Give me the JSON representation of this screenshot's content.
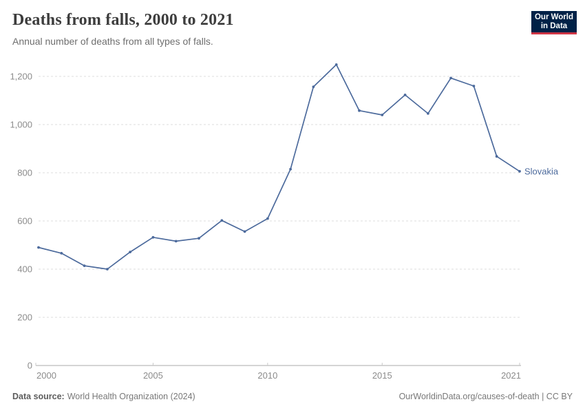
{
  "header": {
    "title": "Deaths from falls, 2000 to 2021",
    "subtitle": "Annual number of deaths from all types of falls."
  },
  "logo": {
    "line1": "Our World",
    "line2": "in Data",
    "bg_color": "#002147",
    "accent_color": "#cf3545"
  },
  "chart_data": {
    "type": "line",
    "title": "Deaths from falls, 2000 to 2021",
    "xlabel": "",
    "ylabel": "",
    "x_range": [
      2000,
      2021
    ],
    "ylim": [
      0,
      1200
    ],
    "grid": "horizontal-dashed",
    "legend_position": "end-of-line-label",
    "x": [
      2000,
      2001,
      2002,
      2003,
      2004,
      2005,
      2006,
      2007,
      2008,
      2009,
      2010,
      2011,
      2012,
      2013,
      2014,
      2015,
      2016,
      2017,
      2018,
      2019,
      2020,
      2021
    ],
    "series": [
      {
        "name": "Slovakia",
        "color": "#4c6a9c",
        "values": [
          490,
          466,
          414,
          400,
          471,
          532,
          516,
          528,
          602,
          556,
          610,
          815,
          1157,
          1249,
          1058,
          1040,
          1123,
          1046,
          1193,
          1160,
          868,
          806
        ]
      }
    ],
    "yticks": [
      {
        "value": 0,
        "label": "0"
      },
      {
        "value": 200,
        "label": "200"
      },
      {
        "value": 400,
        "label": "400"
      },
      {
        "value": 600,
        "label": "600"
      },
      {
        "value": 800,
        "label": "800"
      },
      {
        "value": 1000,
        "label": "1,000"
      },
      {
        "value": 1200,
        "label": "1,200"
      }
    ],
    "xticks": [
      {
        "value": 2000,
        "label": "2000",
        "align": "start"
      },
      {
        "value": 2005,
        "label": "2005",
        "align": "middle"
      },
      {
        "value": 2010,
        "label": "2010",
        "align": "middle"
      },
      {
        "value": 2015,
        "label": "2015",
        "align": "middle"
      },
      {
        "value": 2021,
        "label": "2021",
        "align": "end"
      }
    ],
    "colors": {
      "line": "#4c6a9c",
      "gridline": "#dddddd",
      "axis_line": "#a8a8a8",
      "tick_label": "#8b8b8b"
    }
  },
  "footer": {
    "source_label": "Data source:",
    "source_text": "World Health Organization (2024)",
    "link_text": "OurWorldinData.org/causes-of-death | CC BY"
  }
}
